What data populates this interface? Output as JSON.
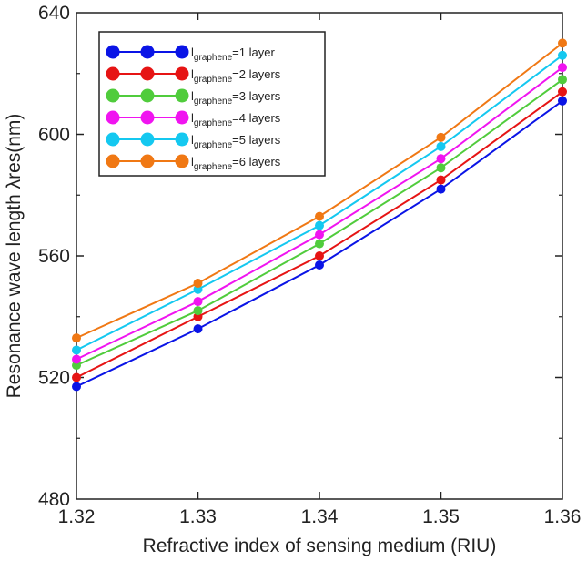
{
  "chart_data": {
    "type": "line",
    "title": "",
    "xlabel": "Refractive index of sensing medium (RIU)",
    "ylabel": "Resonance wave length λres(nm)",
    "xlim": [
      1.32,
      1.36
    ],
    "ylim": [
      480,
      640
    ],
    "xticks": [
      "1.32",
      "1.33",
      "1.34",
      "1.35",
      "1.36"
    ],
    "yticks": [
      "480",
      "520",
      "560",
      "600",
      "640"
    ],
    "x": [
      1.32,
      1.33,
      1.34,
      1.35,
      1.36
    ],
    "grid": false,
    "legend_position": "top-left",
    "series": [
      {
        "name": "lgraphene=1 layer",
        "prefix": "l",
        "sub": "graphene",
        "suffix": "=1 layer",
        "color": "#0a14e6",
        "values": [
          517,
          536,
          557,
          582,
          611
        ]
      },
      {
        "name": "lgraphene=2 layers",
        "prefix": "l",
        "sub": "graphene",
        "suffix": "=2 layers",
        "color": "#e61414",
        "values": [
          520,
          540,
          560,
          585,
          614
        ]
      },
      {
        "name": "lgraphene=3 layers",
        "prefix": "l",
        "sub": "graphene",
        "suffix": "=3 layers",
        "color": "#50cc3c",
        "values": [
          524,
          542,
          564,
          589,
          618
        ]
      },
      {
        "name": "lgraphene=4 layers",
        "prefix": "l",
        "sub": "graphene",
        "suffix": "=4 layers",
        "color": "#f014f0",
        "values": [
          526,
          545,
          567,
          592,
          622
        ]
      },
      {
        "name": "lgraphene=5 layers",
        "prefix": "l",
        "sub": "graphene",
        "suffix": "=5 layers",
        "color": "#14c8f0",
        "values": [
          529,
          549,
          570,
          596,
          626
        ]
      },
      {
        "name": "lgraphene=6 layers",
        "prefix": "l",
        "sub": "graphene",
        "suffix": "=6 layers",
        "color": "#f07814",
        "values": [
          533,
          551,
          573,
          599,
          630
        ]
      }
    ]
  }
}
